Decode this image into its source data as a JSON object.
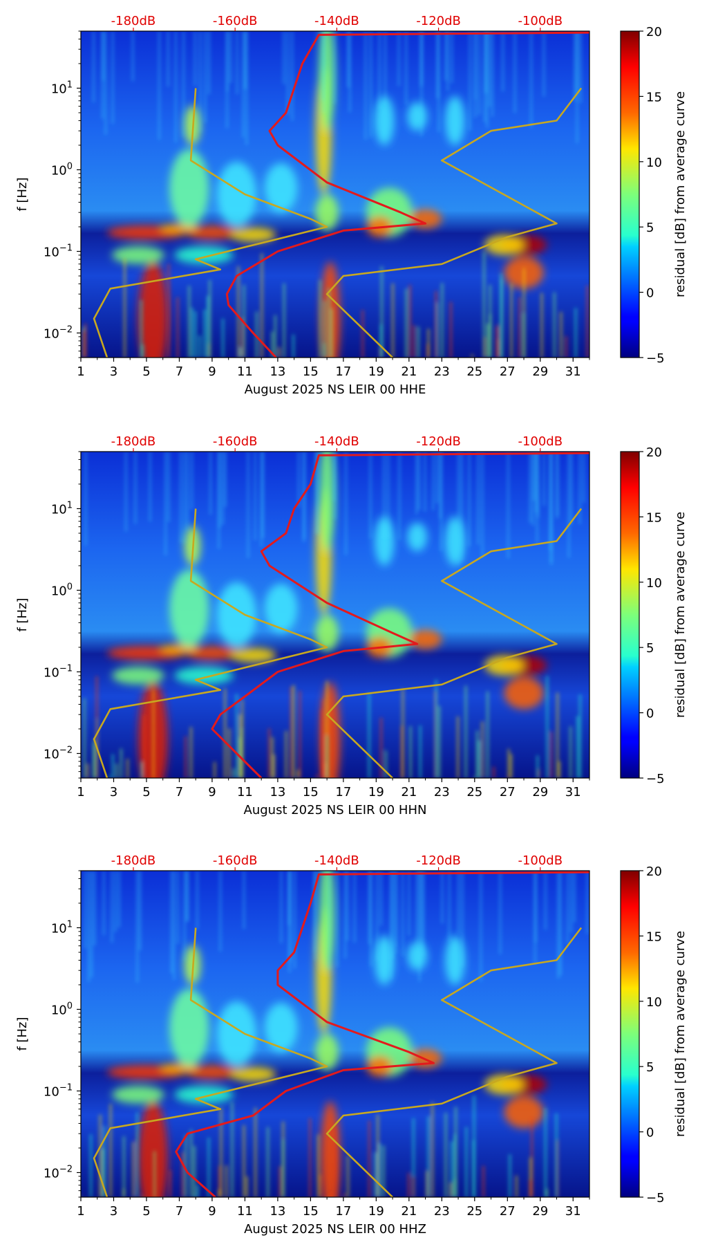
{
  "chart_data": [
    {
      "type": "heatmap",
      "xlabel": "August 2025 NS LEIR 00 HHE",
      "ylabel": "f [Hz]",
      "xlim": [
        1,
        32
      ],
      "ylim": [
        0.005,
        50
      ],
      "yscale": "log",
      "x_ticks": [
        "1",
        "3",
        "5",
        "7",
        "9",
        "11",
        "13",
        "15",
        "17",
        "19",
        "21",
        "23",
        "25",
        "27",
        "29",
        "31"
      ],
      "y_ticks": [
        {
          "value": 0.01,
          "base": "10",
          "exp": "−2"
        },
        {
          "value": 0.1,
          "base": "10",
          "exp": "−1"
        },
        {
          "value": 1,
          "base": "10",
          "exp": "0"
        },
        {
          "value": 10,
          "base": "10",
          "exp": "1"
        }
      ],
      "top_ticks": [
        "-180dB",
        "-160dB",
        "-140dB",
        "-120dB",
        "-100dB"
      ],
      "top_scale": {
        "day_at_-180dB": 4.2,
        "days_per_20dB": 6.2
      },
      "colorbar": {
        "label": "residual [dB] from average curve",
        "min": -5,
        "max": 20,
        "ticks": [
          "−5",
          "0",
          "5",
          "10",
          "15",
          "20"
        ]
      },
      "curves": [
        {
          "color": "#e31a1c",
          "points": [
            [
              12.9,
              0.005
            ],
            [
              11.5,
              0.01
            ],
            [
              10.0,
              0.022
            ],
            [
              9.9,
              0.03
            ],
            [
              10.5,
              0.05
            ],
            [
              13.0,
              0.1
            ],
            [
              17.0,
              0.18
            ],
            [
              22.0,
              0.22
            ],
            [
              20.5,
              0.3
            ],
            [
              16.0,
              0.7
            ],
            [
              13.0,
              2.0
            ],
            [
              12.5,
              3.0
            ],
            [
              13.5,
              5.0
            ],
            [
              14.0,
              10.0
            ],
            [
              14.5,
              20.0
            ],
            [
              15.5,
              45.0
            ],
            [
              32.0,
              48.0
            ]
          ]
        },
        {
          "color": "#c8a820",
          "points": [
            [
              2.6,
              0.005
            ],
            [
              1.8,
              0.015
            ],
            [
              2.8,
              0.035
            ],
            [
              9.5,
              0.06
            ],
            [
              8.0,
              0.08
            ],
            [
              16.0,
              0.2
            ],
            [
              15.0,
              0.25
            ],
            [
              11.0,
              0.5
            ],
            [
              7.7,
              1.3
            ],
            [
              8.0,
              10.0
            ]
          ]
        },
        {
          "color": "#c8a820",
          "points": [
            [
              20.0,
              0.005
            ],
            [
              16.0,
              0.03
            ],
            [
              17.0,
              0.05
            ],
            [
              23.0,
              0.07
            ],
            [
              27.0,
              0.15
            ],
            [
              30.0,
              0.22
            ],
            [
              23.0,
              1.3
            ],
            [
              26.0,
              3.0
            ],
            [
              30.0,
              4.0
            ],
            [
              31.5,
              10.0
            ]
          ]
        }
      ]
    },
    {
      "type": "heatmap",
      "xlabel": "August 2025 NS LEIR 00 HHN",
      "ylabel": "f [Hz]",
      "xlim": [
        1,
        32
      ],
      "ylim": [
        0.005,
        50
      ],
      "yscale": "log",
      "x_ticks": [
        "1",
        "3",
        "5",
        "7",
        "9",
        "11",
        "13",
        "15",
        "17",
        "19",
        "21",
        "23",
        "25",
        "27",
        "29",
        "31"
      ],
      "y_ticks": [
        {
          "value": 0.01,
          "base": "10",
          "exp": "−2"
        },
        {
          "value": 0.1,
          "base": "10",
          "exp": "−1"
        },
        {
          "value": 1,
          "base": "10",
          "exp": "0"
        },
        {
          "value": 10,
          "base": "10",
          "exp": "1"
        }
      ],
      "top_ticks": [
        "-180dB",
        "-160dB",
        "-140dB",
        "-120dB",
        "-100dB"
      ],
      "top_scale": {
        "day_at_-180dB": 4.2,
        "days_per_20dB": 6.2
      },
      "colorbar": {
        "label": "residual [dB] from average curve",
        "min": -5,
        "max": 20,
        "ticks": [
          "−5",
          "0",
          "5",
          "10",
          "15",
          "20"
        ]
      },
      "curves": [
        {
          "color": "#e31a1c",
          "points": [
            [
              12.0,
              0.005
            ],
            [
              10.5,
              0.01
            ],
            [
              9.0,
              0.02
            ],
            [
              9.5,
              0.03
            ],
            [
              11.0,
              0.05
            ],
            [
              13.0,
              0.1
            ],
            [
              17.0,
              0.18
            ],
            [
              21.5,
              0.22
            ],
            [
              20.0,
              0.3
            ],
            [
              16.0,
              0.7
            ],
            [
              12.5,
              2.0
            ],
            [
              12.0,
              3.0
            ],
            [
              13.5,
              5.0
            ],
            [
              14.0,
              10.0
            ],
            [
              15.0,
              20.0
            ],
            [
              15.5,
              45.0
            ],
            [
              32.0,
              48.0
            ]
          ]
        },
        {
          "color": "#c8a820",
          "points": [
            [
              2.6,
              0.005
            ],
            [
              1.8,
              0.015
            ],
            [
              2.8,
              0.035
            ],
            [
              9.5,
              0.06
            ],
            [
              8.0,
              0.08
            ],
            [
              16.0,
              0.2
            ],
            [
              15.0,
              0.25
            ],
            [
              11.0,
              0.5
            ],
            [
              7.7,
              1.3
            ],
            [
              8.0,
              10.0
            ]
          ]
        },
        {
          "color": "#c8a820",
          "points": [
            [
              20.0,
              0.005
            ],
            [
              16.0,
              0.03
            ],
            [
              17.0,
              0.05
            ],
            [
              23.0,
              0.07
            ],
            [
              27.0,
              0.15
            ],
            [
              30.0,
              0.22
            ],
            [
              23.0,
              1.3
            ],
            [
              26.0,
              3.0
            ],
            [
              30.0,
              4.0
            ],
            [
              31.5,
              10.0
            ]
          ]
        }
      ]
    },
    {
      "type": "heatmap",
      "xlabel": "August 2025 NS LEIR 00 HHZ",
      "ylabel": "f [Hz]",
      "xlim": [
        1,
        32
      ],
      "ylim": [
        0.005,
        50
      ],
      "yscale": "log",
      "x_ticks": [
        "1",
        "3",
        "5",
        "7",
        "9",
        "11",
        "13",
        "15",
        "17",
        "19",
        "21",
        "23",
        "25",
        "27",
        "29",
        "31"
      ],
      "y_ticks": [
        {
          "value": 0.01,
          "base": "10",
          "exp": "−2"
        },
        {
          "value": 0.1,
          "base": "10",
          "exp": "−1"
        },
        {
          "value": 1,
          "base": "10",
          "exp": "0"
        },
        {
          "value": 10,
          "base": "10",
          "exp": "1"
        }
      ],
      "top_ticks": [
        "-180dB",
        "-160dB",
        "-140dB",
        "-120dB",
        "-100dB"
      ],
      "top_scale": {
        "day_at_-180dB": 4.2,
        "days_per_20dB": 6.2
      },
      "colorbar": {
        "label": "residual [dB] from average curve",
        "min": -5,
        "max": 20,
        "ticks": [
          "−5",
          "0",
          "5",
          "10",
          "15",
          "20"
        ]
      },
      "curves": [
        {
          "color": "#e31a1c",
          "points": [
            [
              9.2,
              0.005
            ],
            [
              7.5,
              0.01
            ],
            [
              6.8,
              0.018
            ],
            [
              7.5,
              0.03
            ],
            [
              11.5,
              0.05
            ],
            [
              13.5,
              0.1
            ],
            [
              17.0,
              0.18
            ],
            [
              22.5,
              0.22
            ],
            [
              21.0,
              0.3
            ],
            [
              16.0,
              0.7
            ],
            [
              13.0,
              2.0
            ],
            [
              13.0,
              3.0
            ],
            [
              14.0,
              5.0
            ],
            [
              14.5,
              10.0
            ],
            [
              15.0,
              20.0
            ],
            [
              15.5,
              45.0
            ],
            [
              32.0,
              48.0
            ]
          ]
        },
        {
          "color": "#c8a820",
          "points": [
            [
              2.6,
              0.005
            ],
            [
              1.8,
              0.015
            ],
            [
              2.8,
              0.035
            ],
            [
              9.5,
              0.06
            ],
            [
              8.0,
              0.08
            ],
            [
              16.0,
              0.2
            ],
            [
              15.0,
              0.25
            ],
            [
              11.0,
              0.5
            ],
            [
              7.7,
              1.3
            ],
            [
              8.0,
              10.0
            ]
          ]
        },
        {
          "color": "#c8a820",
          "points": [
            [
              20.0,
              0.005
            ],
            [
              16.0,
              0.03
            ],
            [
              17.0,
              0.05
            ],
            [
              23.0,
              0.07
            ],
            [
              27.0,
              0.15
            ],
            [
              30.0,
              0.22
            ],
            [
              23.0,
              1.3
            ],
            [
              26.0,
              3.0
            ],
            [
              30.0,
              4.0
            ],
            [
              31.5,
              10.0
            ]
          ]
        }
      ]
    }
  ]
}
